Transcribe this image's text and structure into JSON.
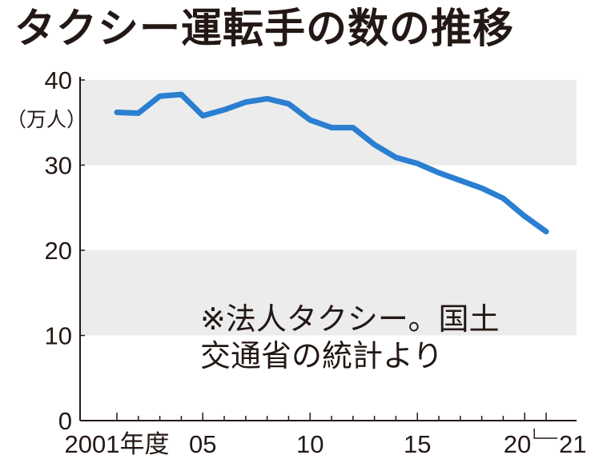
{
  "title": "タクシー運転手の数の推移",
  "chart_data": {
    "type": "line",
    "title": "タクシー運転手の数の推移",
    "ylabel": "（万人）",
    "xlabel": "",
    "ylim": [
      0,
      40
    ],
    "yticks": [
      "0",
      "10",
      "20",
      "30",
      "40"
    ],
    "xlim": [
      2000,
      2022
    ],
    "xtick_labels": [
      {
        "x": 2001,
        "label": "2001年度"
      },
      {
        "x": 2005,
        "label": "05"
      },
      {
        "x": 2010,
        "label": "10"
      },
      {
        "x": 2015,
        "label": "15"
      },
      {
        "x": 2020,
        "label": "20"
      },
      {
        "x": 2021,
        "label": "21"
      }
    ],
    "grid": "alternating horizontal bands",
    "series": [
      {
        "color": "#2a7fd0",
        "x": [
          2001,
          2002,
          2003,
          2004,
          2005,
          2006,
          2007,
          2008,
          2009,
          2010,
          2011,
          2012,
          2013,
          2014,
          2015,
          2016,
          2017,
          2018,
          2019,
          2020,
          2021
        ],
        "values": [
          36.2,
          36.1,
          38.1,
          38.3,
          35.8,
          36.5,
          37.4,
          37.8,
          37.2,
          35.3,
          34.4,
          34.4,
          32.4,
          30.9,
          30.2,
          29.1,
          28.2,
          27.3,
          26.1,
          24.0,
          22.2
        ]
      }
    ]
  },
  "note_lines": [
    "※法人タクシー。国土",
    "交通省の統計より"
  ]
}
